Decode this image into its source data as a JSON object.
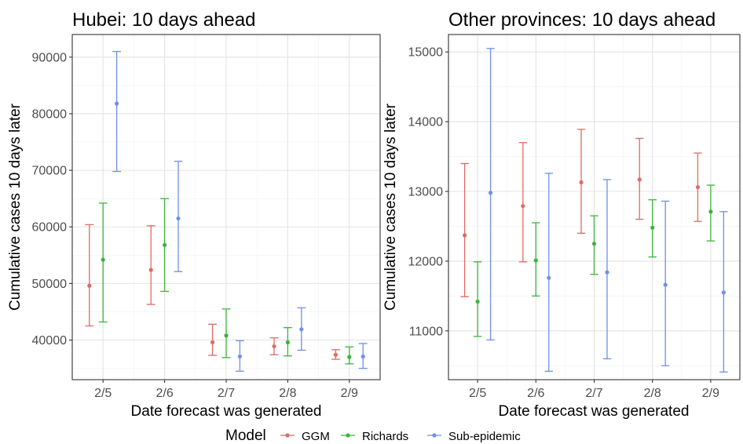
{
  "colors": {
    "GGM": "#E06A63",
    "Richards": "#3BB33B",
    "Sub-epidemic": "#6F8FEA"
  },
  "legend": {
    "title": "Model",
    "labels": [
      "GGM",
      "Richards",
      "Sub-epidemic"
    ]
  },
  "chart_data": [
    {
      "type": "errorbar",
      "title": "Hubei: 10 days ahead",
      "xlabel": "Date forecast was generated",
      "ylabel": "Cumulative cases 10 days later",
      "categories": [
        "2/5",
        "2/6",
        "2/7",
        "2/8",
        "2/9"
      ],
      "ylim": [
        33000,
        94000
      ],
      "yticks": [
        40000,
        50000,
        60000,
        70000,
        80000,
        90000
      ],
      "ytick_labels": [
        "40000",
        "50000",
        "60000",
        "70000",
        "80000",
        "90000"
      ],
      "series": [
        {
          "name": "GGM",
          "mid": [
            49600,
            52400,
            39600,
            38900,
            37400
          ],
          "lower": [
            42500,
            46300,
            37300,
            37400,
            36600
          ],
          "upper": [
            60400,
            60200,
            42800,
            40400,
            38300
          ]
        },
        {
          "name": "Richards",
          "mid": [
            54200,
            56800,
            40800,
            39600,
            37000
          ],
          "lower": [
            43200,
            48600,
            36900,
            37200,
            35800
          ],
          "upper": [
            64200,
            65000,
            45500,
            42200,
            38800
          ]
        },
        {
          "name": "Sub-epidemic",
          "mid": [
            81800,
            61500,
            37100,
            41900,
            37100
          ],
          "lower": [
            69800,
            52100,
            34500,
            38200,
            35000
          ],
          "upper": [
            91000,
            71600,
            39900,
            45700,
            39400
          ]
        }
      ]
    },
    {
      "type": "errorbar",
      "title": "Other provinces: 10 days ahead",
      "xlabel": "Date forecast was generated",
      "ylabel": "Cumulative cases 10 days later",
      "categories": [
        "2/5",
        "2/6",
        "2/7",
        "2/8",
        "2/9"
      ],
      "ylim": [
        10300,
        15250
      ],
      "yticks": [
        11000,
        12000,
        13000,
        14000,
        15000
      ],
      "ytick_labels": [
        "11000",
        "12000",
        "13000",
        "14000",
        "15000"
      ],
      "series": [
        {
          "name": "GGM",
          "mid": [
            12370,
            12790,
            13130,
            13170,
            13060
          ],
          "lower": [
            11490,
            11990,
            12400,
            12600,
            12570
          ],
          "upper": [
            13400,
            13700,
            13890,
            13760,
            13550
          ]
        },
        {
          "name": "Richards",
          "mid": [
            11420,
            12010,
            12250,
            12480,
            12710
          ],
          "lower": [
            10920,
            11500,
            11810,
            12060,
            12290
          ],
          "upper": [
            11990,
            12550,
            12650,
            12880,
            13090
          ]
        },
        {
          "name": "Sub-epidemic",
          "mid": [
            12980,
            11760,
            11840,
            11660,
            11550
          ],
          "lower": [
            10870,
            10420,
            10600,
            10500,
            10410
          ],
          "upper": [
            15050,
            13260,
            13170,
            12860,
            12710
          ]
        }
      ]
    }
  ]
}
